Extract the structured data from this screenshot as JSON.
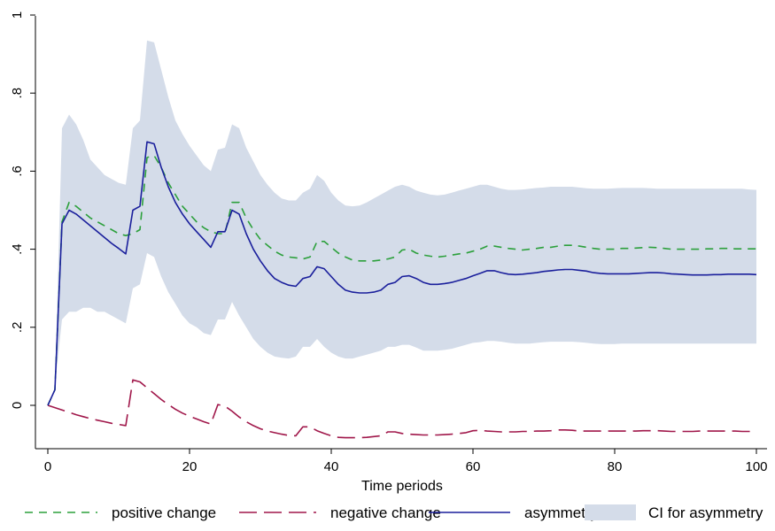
{
  "chart_data": {
    "type": "line",
    "title": "",
    "xlabel": "Time periods",
    "ylabel": "",
    "xlim": [
      0,
      100
    ],
    "ylim": [
      -0.1,
      1.0
    ],
    "xticks": [
      0,
      20,
      40,
      60,
      80,
      100
    ],
    "yticks": [
      0,
      0.2,
      0.4,
      0.6,
      0.8,
      1
    ],
    "xtick_labels": [
      "0",
      "20",
      "40",
      "60",
      "80",
      "100"
    ],
    "ytick_labels": [
      "0",
      ".2",
      ".4",
      ".6",
      ".8",
      "1"
    ],
    "grid": false,
    "legend_position": "bottom",
    "x": [
      0,
      1,
      2,
      3,
      4,
      5,
      6,
      7,
      8,
      9,
      10,
      11,
      12,
      13,
      14,
      15,
      16,
      17,
      18,
      19,
      20,
      21,
      22,
      23,
      24,
      25,
      26,
      27,
      28,
      29,
      30,
      31,
      32,
      33,
      34,
      35,
      36,
      37,
      38,
      39,
      40,
      41,
      42,
      43,
      44,
      45,
      46,
      47,
      48,
      49,
      50,
      51,
      52,
      53,
      54,
      55,
      56,
      57,
      58,
      59,
      60,
      61,
      62,
      63,
      64,
      65,
      66,
      67,
      68,
      69,
      70,
      71,
      72,
      73,
      74,
      75,
      76,
      77,
      78,
      79,
      80,
      81,
      82,
      83,
      84,
      85,
      86,
      87,
      88,
      89,
      90,
      91,
      92,
      93,
      94,
      95,
      96,
      97,
      98,
      99,
      100
    ],
    "series": [
      {
        "name": "positive change",
        "color": "#2ca03c",
        "style": "dashed",
        "values": [
          0,
          0.04,
          0.47,
          0.52,
          0.51,
          0.495,
          0.48,
          0.47,
          0.46,
          0.45,
          0.44,
          0.435,
          0.44,
          0.45,
          0.635,
          0.64,
          0.61,
          0.57,
          0.54,
          0.51,
          0.49,
          0.47,
          0.455,
          0.445,
          0.44,
          0.44,
          0.52,
          0.52,
          0.48,
          0.45,
          0.425,
          0.41,
          0.395,
          0.385,
          0.38,
          0.378,
          0.375,
          0.38,
          0.42,
          0.42,
          0.405,
          0.39,
          0.38,
          0.372,
          0.37,
          0.37,
          0.37,
          0.372,
          0.375,
          0.38,
          0.398,
          0.4,
          0.39,
          0.385,
          0.382,
          0.38,
          0.382,
          0.385,
          0.388,
          0.39,
          0.395,
          0.4,
          0.408,
          0.408,
          0.405,
          0.402,
          0.4,
          0.398,
          0.4,
          0.402,
          0.405,
          0.405,
          0.408,
          0.41,
          0.41,
          0.408,
          0.405,
          0.402,
          0.4,
          0.4,
          0.4,
          0.402,
          0.402,
          0.403,
          0.404,
          0.405,
          0.404,
          0.402,
          0.4,
          0.4,
          0.4,
          0.4,
          0.4,
          0.401,
          0.401,
          0.402,
          0.402,
          0.401,
          0.401,
          0.401,
          0.401
        ]
      },
      {
        "name": "negative change",
        "color": "#a0174a",
        "style": "longdash",
        "values": [
          0,
          -0.006,
          -0.012,
          -0.018,
          -0.024,
          -0.029,
          -0.034,
          -0.038,
          -0.042,
          -0.046,
          -0.049,
          -0.052,
          0.065,
          0.06,
          0.045,
          0.03,
          0.015,
          0.002,
          -0.01,
          -0.02,
          -0.028,
          -0.035,
          -0.042,
          -0.048,
          0.002,
          -0.002,
          -0.015,
          -0.03,
          -0.042,
          -0.052,
          -0.06,
          -0.066,
          -0.07,
          -0.074,
          -0.077,
          -0.078,
          -0.055,
          -0.055,
          -0.065,
          -0.072,
          -0.078,
          -0.082,
          -0.083,
          -0.083,
          -0.083,
          -0.082,
          -0.08,
          -0.078,
          -0.068,
          -0.068,
          -0.072,
          -0.074,
          -0.075,
          -0.076,
          -0.076,
          -0.076,
          -0.075,
          -0.074,
          -0.072,
          -0.07,
          -0.065,
          -0.064,
          -0.066,
          -0.067,
          -0.068,
          -0.068,
          -0.068,
          -0.067,
          -0.067,
          -0.066,
          -0.066,
          -0.065,
          -0.063,
          -0.063,
          -0.064,
          -0.066,
          -0.066,
          -0.066,
          -0.066,
          -0.066,
          -0.066,
          -0.066,
          -0.066,
          -0.066,
          -0.065,
          -0.065,
          -0.065,
          -0.066,
          -0.067,
          -0.067,
          -0.067,
          -0.067,
          -0.066,
          -0.066,
          -0.066,
          -0.066,
          -0.066,
          -0.066,
          -0.067,
          -0.067,
          -0.067
        ]
      },
      {
        "name": "asymmetry",
        "color": "#1a1f9c",
        "style": "solid",
        "values": [
          0,
          0.04,
          0.465,
          0.5,
          0.49,
          0.475,
          0.46,
          0.445,
          0.43,
          0.415,
          0.402,
          0.388,
          0.5,
          0.51,
          0.675,
          0.67,
          0.61,
          0.56,
          0.52,
          0.49,
          0.465,
          0.445,
          0.425,
          0.405,
          0.445,
          0.445,
          0.5,
          0.49,
          0.44,
          0.4,
          0.37,
          0.345,
          0.325,
          0.315,
          0.308,
          0.305,
          0.325,
          0.33,
          0.355,
          0.35,
          0.33,
          0.31,
          0.295,
          0.29,
          0.288,
          0.288,
          0.29,
          0.295,
          0.31,
          0.315,
          0.33,
          0.332,
          0.325,
          0.315,
          0.31,
          0.31,
          0.312,
          0.315,
          0.32,
          0.325,
          0.332,
          0.338,
          0.345,
          0.345,
          0.34,
          0.336,
          0.335,
          0.336,
          0.338,
          0.34,
          0.343,
          0.345,
          0.347,
          0.348,
          0.348,
          0.346,
          0.344,
          0.34,
          0.338,
          0.337,
          0.337,
          0.337,
          0.337,
          0.338,
          0.339,
          0.34,
          0.34,
          0.339,
          0.337,
          0.336,
          0.335,
          0.334,
          0.334,
          0.334,
          0.335,
          0.335,
          0.336,
          0.336,
          0.336,
          0.336,
          0.335
        ]
      }
    ],
    "band": {
      "name": "CI for asymmetry",
      "color": "#d4dce9",
      "lower": [
        0,
        0.05,
        0.22,
        0.24,
        0.24,
        0.25,
        0.25,
        0.24,
        0.24,
        0.23,
        0.22,
        0.21,
        0.3,
        0.31,
        0.39,
        0.38,
        0.33,
        0.29,
        0.26,
        0.23,
        0.21,
        0.2,
        0.185,
        0.18,
        0.22,
        0.22,
        0.265,
        0.23,
        0.2,
        0.17,
        0.15,
        0.135,
        0.125,
        0.122,
        0.12,
        0.125,
        0.15,
        0.15,
        0.17,
        0.15,
        0.135,
        0.125,
        0.12,
        0.12,
        0.125,
        0.13,
        0.135,
        0.14,
        0.15,
        0.15,
        0.155,
        0.155,
        0.148,
        0.14,
        0.14,
        0.14,
        0.142,
        0.145,
        0.15,
        0.155,
        0.16,
        0.162,
        0.165,
        0.165,
        0.163,
        0.16,
        0.158,
        0.158,
        0.158,
        0.16,
        0.162,
        0.163,
        0.163,
        0.163,
        0.163,
        0.162,
        0.16,
        0.158,
        0.157,
        0.157,
        0.157,
        0.158,
        0.158,
        0.158,
        0.158,
        0.158,
        0.158,
        0.158,
        0.158,
        0.158,
        0.158,
        0.158,
        0.158,
        0.158,
        0.158,
        0.158,
        0.158,
        0.158,
        0.158,
        0.158,
        0.158
      ],
      "upper": [
        0,
        0.05,
        0.71,
        0.745,
        0.72,
        0.68,
        0.63,
        0.61,
        0.59,
        0.58,
        0.57,
        0.565,
        0.71,
        0.73,
        0.935,
        0.93,
        0.86,
        0.79,
        0.73,
        0.695,
        0.665,
        0.64,
        0.615,
        0.6,
        0.655,
        0.66,
        0.72,
        0.71,
        0.66,
        0.625,
        0.59,
        0.565,
        0.545,
        0.53,
        0.525,
        0.525,
        0.545,
        0.555,
        0.59,
        0.575,
        0.545,
        0.525,
        0.512,
        0.51,
        0.512,
        0.52,
        0.53,
        0.54,
        0.55,
        0.56,
        0.565,
        0.56,
        0.55,
        0.545,
        0.54,
        0.538,
        0.54,
        0.545,
        0.55,
        0.555,
        0.56,
        0.565,
        0.565,
        0.56,
        0.555,
        0.552,
        0.552,
        0.553,
        0.555,
        0.557,
        0.558,
        0.56,
        0.56,
        0.56,
        0.56,
        0.558,
        0.556,
        0.555,
        0.555,
        0.555,
        0.556,
        0.557,
        0.557,
        0.557,
        0.557,
        0.556,
        0.555,
        0.555,
        0.555,
        0.555,
        0.555,
        0.555,
        0.555,
        0.555,
        0.555,
        0.555,
        0.555,
        0.555,
        0.555,
        0.553,
        0.552
      ]
    }
  }
}
